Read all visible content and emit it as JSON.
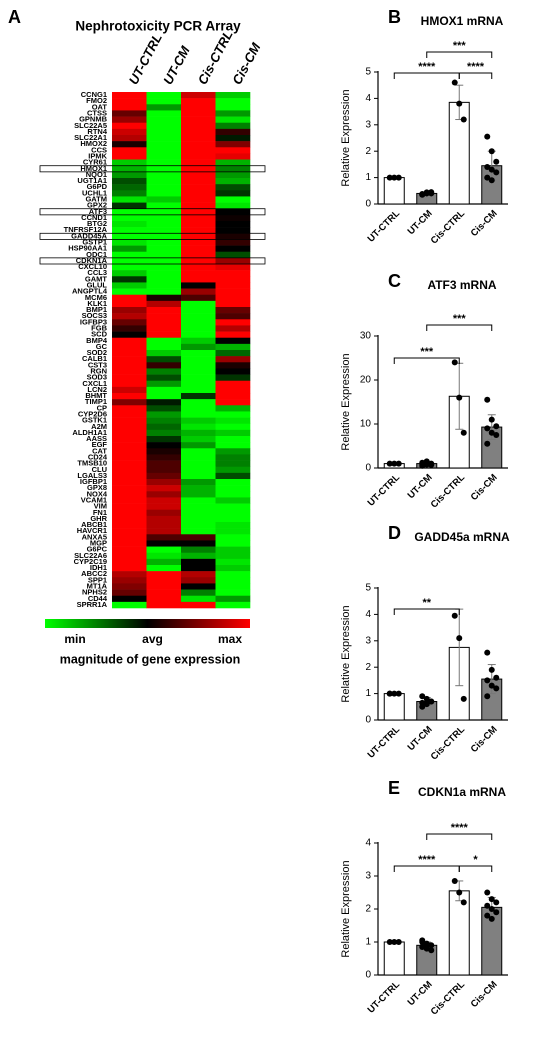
{
  "chart_data": [
    {
      "type": "heatmap",
      "panel": "A",
      "title": "Nephrotoxicity PCR Array",
      "columns": [
        "UT-CTRL",
        "UT-CM",
        "Cis-CTRL",
        "Cis-CM"
      ],
      "rows": [
        "CCNG1",
        "FMO2",
        "OAT",
        "CTSS",
        "GPNMB",
        "SLC22A5",
        "RTN4",
        "SLC22A1",
        "HMOX2",
        "CCS",
        "IPMK",
        "CYR61",
        "HMOX1",
        "NQO1",
        "UGT1A1",
        "G6PD",
        "UCHL1",
        "GATM",
        "GPX2",
        "ATF3",
        "CCND1",
        "BTG2",
        "TNFRSF12A",
        "GADD45A",
        "GSTP1",
        "HSP90AA1",
        "ODC1",
        "CDKN1A",
        "CXCL10",
        "CCL3",
        "GAMT",
        "GLUL",
        "ANGPTL4",
        "MCM6",
        "KLK1",
        "BMP1",
        "SOCS3",
        "IGFBP3",
        "FGB",
        "SCD",
        "BMP4",
        "GC",
        "SOD2",
        "CALB1",
        "CST3",
        "RGN",
        "SOD3",
        "CXCL1",
        "LCN2",
        "BHMT",
        "TIMP1",
        "CP",
        "CYP2D6",
        "GSTK1",
        "A2M",
        "ALDH1A1",
        "AASS",
        "EGF",
        "CAT",
        "CD24",
        "TMSB10",
        "CLU",
        "LGALS3",
        "IGFBP1",
        "GPX8",
        "NOX4",
        "VCAM1",
        "VIM",
        "FN1",
        "GHR",
        "ABCB1",
        "HAVCR1",
        "ANXA5",
        "MGP",
        "G6PC",
        "SLC22A6",
        "CYP2C19",
        "IDH1",
        "ABCC2",
        "SPP1",
        "MT1A",
        "NPHS2",
        "CD44",
        "SPRR1A"
      ],
      "values": [
        [
          1,
          -1,
          0.8,
          -0.8
        ],
        [
          1,
          -1,
          1,
          -1
        ],
        [
          1,
          -0.6,
          1,
          -1
        ],
        [
          0.4,
          -1,
          1,
          -0.6
        ],
        [
          0.6,
          -1,
          1,
          -0.9
        ],
        [
          1,
          -1,
          1,
          -0.5
        ],
        [
          0.8,
          -1,
          1,
          0.2
        ],
        [
          0.7,
          -1,
          1,
          -0.1
        ],
        [
          0.1,
          -1,
          1,
          0.5
        ],
        [
          1,
          -1,
          1,
          1
        ],
        [
          1,
          -1,
          1,
          0.9
        ],
        [
          -0.8,
          -1,
          1,
          -0.7
        ],
        [
          -0.7,
          -1,
          1,
          -0.5
        ],
        [
          -0.6,
          -1,
          1,
          -0.6
        ],
        [
          -0.3,
          -1,
          1,
          -0.7
        ],
        [
          -0.4,
          -1,
          1,
          -0.3
        ],
        [
          -0.5,
          -1,
          1,
          -0.2
        ],
        [
          -0.9,
          -0.8,
          1,
          -1
        ],
        [
          -0.2,
          -1,
          1,
          -0.9
        ],
        [
          -1,
          -1,
          1,
          0
        ],
        [
          -1,
          -1,
          1,
          0.05
        ],
        [
          -0.9,
          -1,
          1,
          0
        ],
        [
          -1,
          -1,
          1,
          0
        ],
        [
          -1,
          -1,
          1,
          0.1
        ],
        [
          -0.9,
          -1,
          1,
          0.2
        ],
        [
          -0.6,
          -1,
          1,
          0
        ],
        [
          -1,
          -1,
          1,
          -0.3
        ],
        [
          -1,
          -1,
          1,
          0.6
        ],
        [
          -1,
          -1,
          1,
          0.9
        ],
        [
          -0.8,
          -1,
          1,
          1
        ],
        [
          -0.2,
          -1,
          1,
          1
        ],
        [
          -0.8,
          -1,
          0,
          1
        ],
        [
          -1,
          -1,
          0.6,
          1
        ],
        [
          1,
          0.1,
          0.3,
          1
        ],
        [
          1,
          0.7,
          -1,
          1
        ],
        [
          0.6,
          1,
          -1,
          0.4
        ],
        [
          0.7,
          1,
          -1,
          0.3
        ],
        [
          0.4,
          1,
          -1,
          1
        ],
        [
          0.2,
          1,
          -1,
          0.7
        ],
        [
          0,
          1,
          -1,
          1
        ],
        [
          1,
          -1,
          -0.8,
          0
        ],
        [
          1,
          -1,
          -0.6,
          -0.7
        ],
        [
          1,
          -0.8,
          -1,
          -0.4
        ],
        [
          1,
          -0.3,
          -1,
          0.6
        ],
        [
          1,
          0.2,
          -1,
          0.1
        ],
        [
          1,
          -0.5,
          -1,
          0
        ],
        [
          1,
          -0.3,
          -1,
          -0.2
        ],
        [
          1,
          -0.6,
          -1,
          1
        ],
        [
          0.8,
          -1,
          -1,
          1
        ],
        [
          1,
          -1,
          -0.2,
          1
        ],
        [
          0.5,
          -0.1,
          -1,
          1
        ],
        [
          1,
          -0.3,
          -1,
          -0.7
        ],
        [
          1,
          -0.6,
          -1,
          -1
        ],
        [
          1,
          -0.5,
          -0.8,
          -0.9
        ],
        [
          1,
          -0.4,
          -0.9,
          -1
        ],
        [
          1,
          -0.5,
          -0.7,
          -0.8
        ],
        [
          1,
          -0.2,
          -0.8,
          -1
        ],
        [
          1,
          0,
          -0.6,
          -1
        ],
        [
          1,
          0.1,
          -1,
          -0.6
        ],
        [
          1,
          0.2,
          -1,
          -0.5
        ],
        [
          1,
          0.3,
          -1,
          -0.5
        ],
        [
          1,
          0.3,
          -1,
          -0.6
        ],
        [
          1,
          0.4,
          -1,
          -0.3
        ],
        [
          1,
          0.6,
          -0.6,
          -1
        ],
        [
          1,
          0.8,
          -0.7,
          -1
        ],
        [
          1,
          0.6,
          -0.7,
          -1
        ],
        [
          1,
          0.8,
          -1,
          -0.8
        ],
        [
          1,
          0.8,
          -1,
          -1
        ],
        [
          1,
          0.6,
          -1,
          -1
        ],
        [
          1,
          0.7,
          -1,
          -1
        ],
        [
          1,
          0.7,
          -1,
          -0.9
        ],
        [
          1,
          0.7,
          -1,
          -0.9
        ],
        [
          1,
          0.3,
          0.3,
          -1
        ],
        [
          1,
          0,
          0,
          -1
        ],
        [
          1,
          -1,
          -0.5,
          -0.8
        ],
        [
          1,
          -0.9,
          -0.7,
          -0.8
        ],
        [
          1,
          -0.7,
          0,
          -0.9
        ],
        [
          1,
          -1,
          0,
          -0.8
        ],
        [
          0.7,
          1,
          0.7,
          -1
        ],
        [
          0.6,
          1,
          0.6,
          -1
        ],
        [
          0.5,
          1,
          0,
          -1
        ],
        [
          0.4,
          1,
          -0.5,
          -1
        ],
        [
          0,
          1,
          -0.9,
          -0.6
        ],
        [
          -1,
          1,
          1,
          -1
        ]
      ],
      "colorbar": {
        "lim": [
          -1,
          1
        ],
        "ticks": [
          {
            "value": -1,
            "label": "min"
          },
          {
            "value": 0,
            "label": "avg"
          },
          {
            "value": 1,
            "label": "max"
          }
        ],
        "label": "magnitude of gene expression"
      }
    },
    {
      "type": "bar",
      "panel": "B",
      "title": "HMOX1 mRNA",
      "ylabel": "Relative Expression",
      "categories": [
        "UT-CTRL",
        "UT-CM",
        "Cis-CTRL",
        "Cis-CM"
      ],
      "colors": [
        "#ffffff",
        "#808080",
        "#ffffff",
        "#808080"
      ],
      "values": [
        1.0,
        0.4,
        3.85,
        1.45
      ],
      "errors": [
        0.03,
        0.05,
        0.65,
        0.55
      ],
      "points": [
        [
          1,
          1,
          1
        ],
        [
          0.35,
          0.4,
          0.45,
          0.38,
          0.42,
          0.4,
          0.36,
          0.44
        ],
        [
          4.6,
          3.8,
          3.2
        ],
        [
          2.55,
          2.0,
          1.6,
          1.4,
          1.3,
          1.2,
          1.0,
          0.9
        ]
      ],
      "ylim": [
        0,
        5
      ],
      "yticks": [
        0,
        1,
        2,
        3,
        4,
        5
      ],
      "annotations": [
        "****",
        "***",
        "****"
      ]
    },
    {
      "type": "bar",
      "panel": "C",
      "title": "ATF3 mRNA",
      "ylabel": "Relative Expression",
      "categories": [
        "UT-CTRL",
        "UT-CM",
        "Cis-CTRL",
        "Cis-CM"
      ],
      "colors": [
        "#ffffff",
        "#808080",
        "#ffffff",
        "#808080"
      ],
      "values": [
        1,
        1,
        16.3,
        9.3
      ],
      "errors": [
        0.1,
        0.3,
        7.5,
        2.8
      ],
      "points": [
        [
          1,
          1,
          1
        ],
        [
          0.5,
          0.8,
          1,
          1.2,
          1.5,
          0.7,
          0.9
        ],
        [
          24,
          16,
          8
        ],
        [
          15.5,
          11,
          9.5,
          9,
          8,
          7.5,
          5.5
        ]
      ],
      "ylim": [
        0,
        30
      ],
      "yticks": [
        0,
        10,
        20,
        30
      ],
      "annotations": [
        "***",
        "***"
      ]
    },
    {
      "type": "bar",
      "panel": "D",
      "title": "GADD45a mRNA",
      "ylabel": "Relative Expression",
      "categories": [
        "UT-CTRL",
        "UT-CM",
        "Cis-CTRL",
        "Cis-CM"
      ],
      "colors": [
        "#ffffff",
        "#808080",
        "#ffffff",
        "#808080"
      ],
      "values": [
        1,
        0.7,
        2.75,
        1.55
      ],
      "errors": [
        0.02,
        0.15,
        1.45,
        0.55
      ],
      "points": [
        [
          1,
          1,
          1,
          1
        ],
        [
          0.9,
          0.8,
          0.7,
          0.65,
          0.6,
          0.7,
          0.5
        ],
        [
          3.95,
          3.1,
          0.8
        ],
        [
          2.55,
          1.9,
          1.6,
          1.5,
          1.3,
          1.2,
          0.9
        ]
      ],
      "ylim": [
        0,
        5
      ],
      "yticks": [
        0,
        1,
        2,
        3,
        4,
        5
      ],
      "annotations": [
        "**"
      ]
    },
    {
      "type": "bar",
      "panel": "E",
      "title": "CDKN1a mRNA",
      "ylabel": "Relative Expression",
      "categories": [
        "UT-CTRL",
        "UT-CM",
        "Cis-CTRL",
        "Cis-CM"
      ],
      "colors": [
        "#ffffff",
        "#808080",
        "#ffffff",
        "#808080"
      ],
      "values": [
        1,
        0.9,
        2.55,
        2.05
      ],
      "errors": [
        0.02,
        0.1,
        0.3,
        0.3
      ],
      "points": [
        [
          1,
          1,
          1
        ],
        [
          1.0,
          0.95,
          0.9,
          0.85,
          0.8,
          0.75,
          1.05,
          0.9
        ],
        [
          2.85,
          2.5,
          2.2
        ],
        [
          2.5,
          2.3,
          2.2,
          2.1,
          2.0,
          1.9,
          1.8,
          1.7
        ]
      ],
      "ylim": [
        0,
        4
      ],
      "yticks": [
        0,
        1,
        2,
        3,
        4
      ],
      "annotations": [
        "****",
        "****",
        "*"
      ]
    }
  ]
}
